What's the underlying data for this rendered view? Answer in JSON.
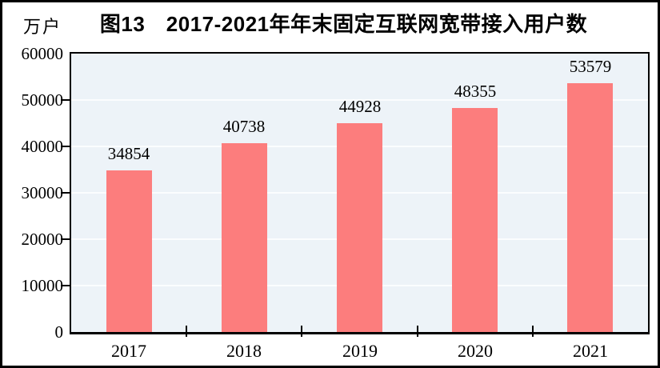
{
  "page": {
    "title": "图13　2017-2021年年末固定互联网宽带接入用户数",
    "unit_label": "万户"
  },
  "colors": {
    "bar": "#FC7D7D",
    "plot_background": "#EDF3F8",
    "gridline": "#FBFDFE",
    "axis": "#000000",
    "text": "#000000"
  },
  "chart_data": {
    "type": "bar",
    "title": "图13　2017-2021年年末固定互联网宽带接入用户数",
    "unit": "万户",
    "categories": [
      "2017",
      "2018",
      "2019",
      "2020",
      "2021"
    ],
    "values": [
      34854,
      40738,
      44928,
      48355,
      53579
    ],
    "value_labels": [
      "34854",
      "40738",
      "44928",
      "48355",
      "53579"
    ],
    "xlabel": "",
    "ylabel": "万户",
    "ylim": [
      0,
      60000
    ],
    "yticks": [
      0,
      10000,
      20000,
      30000,
      40000,
      50000,
      60000
    ],
    "grid": true,
    "legend": "none"
  }
}
